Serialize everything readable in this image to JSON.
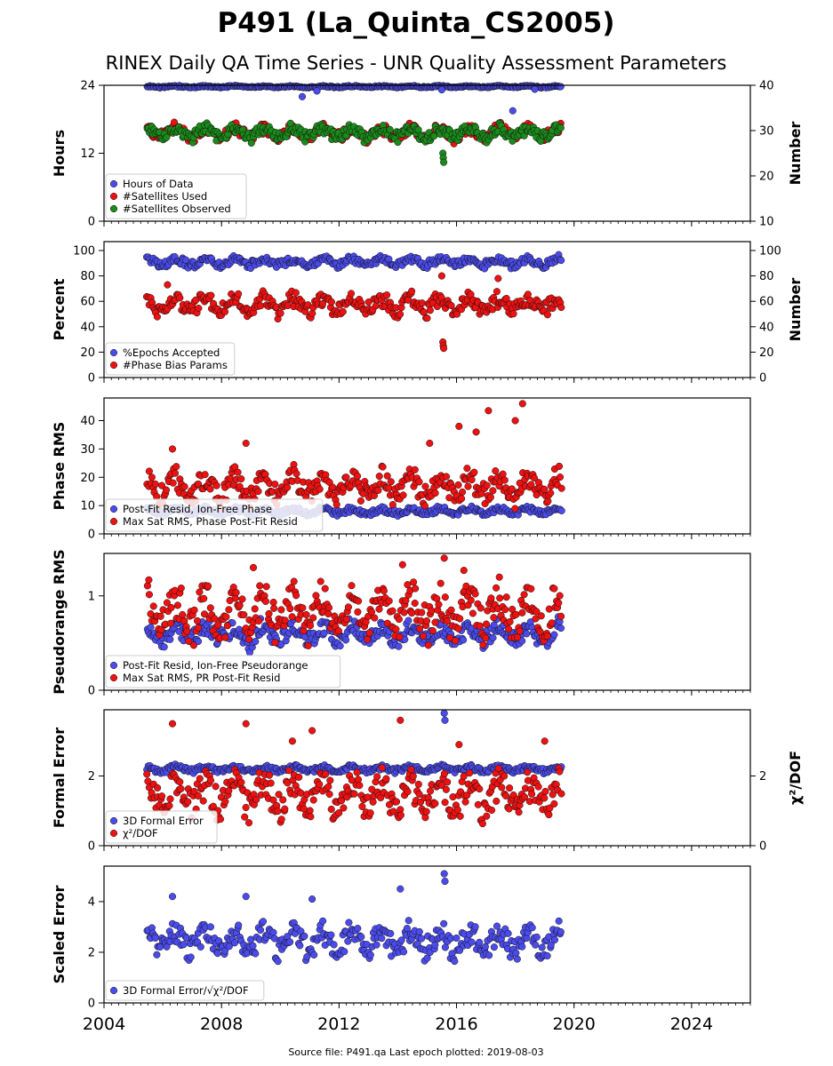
{
  "title": "P491 (La_Quinta_CS2005)",
  "subtitle": "RINEX Daily QA Time Series - UNR Quality Assessment Parameters",
  "source_note": "Source file: P491.qa Last epoch plotted: 2019-08-03",
  "colors": {
    "blue": "#4b4bec",
    "red": "#ee1111",
    "green": "#1a8a1a",
    "edge": "#111111"
  },
  "x_axis": {
    "range": [
      "2004-01-01",
      "2026-01-01"
    ],
    "tick_labels": [
      "2004",
      "2008",
      "2012",
      "2016",
      "2020",
      "2024"
    ],
    "tick_years": [
      2004,
      2008,
      2012,
      2016,
      2020,
      2024
    ],
    "data_start": "2005-06-15",
    "data_end": "2019-08-03"
  },
  "chart_data": [
    {
      "type": "scatter",
      "ylabel": "Hours",
      "ylim": [
        0,
        24
      ],
      "yticks": [
        "0",
        "12",
        "24"
      ],
      "y2label": "Number",
      "y2lim": [
        10,
        40
      ],
      "y2ticks": [
        "10",
        "20",
        "30",
        "40"
      ],
      "legend": "lower-left",
      "series": [
        {
          "name": "Hours of Data",
          "color": "#4b4bec",
          "axis": "left",
          "typical": 24,
          "range": [
            23.5,
            24
          ],
          "outliers": [
            {
              "x": "2010-10-01",
              "y": 22
            },
            {
              "x": "2011-04-01",
              "y": 23
            },
            {
              "x": "2015-07-01",
              "y": 23.2
            },
            {
              "x": "2017-12-01",
              "y": 19.5
            },
            {
              "x": "2018-09-01",
              "y": 23.3
            }
          ]
        },
        {
          "name": "#Satellites Used",
          "color": "#ee1111",
          "axis": "right",
          "typical": 29,
          "range": [
            27,
            32
          ],
          "outliers": [
            {
              "x": "2009-05-01",
              "y": 30
            }
          ]
        },
        {
          "name": "#Satellites Observed",
          "color": "#1a8a1a",
          "axis": "right",
          "typical": 30,
          "range": [
            27,
            32
          ],
          "outliers": [
            {
              "x": "2015-07-15",
              "y": 25
            },
            {
              "x": "2015-07-20",
              "y": 24
            },
            {
              "x": "2015-07-25",
              "y": 23
            }
          ]
        }
      ]
    },
    {
      "type": "scatter",
      "ylabel": "Percent",
      "ylim": [
        0,
        107
      ],
      "yticks": [
        "0",
        "20",
        "40",
        "60",
        "80",
        "100"
      ],
      "y2label": "Number",
      "y2lim": [
        0,
        107
      ],
      "y2ticks": [
        "0",
        "20",
        "40",
        "60",
        "80",
        "100"
      ],
      "legend": "lower-left",
      "series": [
        {
          "name": "%Epochs Accepted",
          "color": "#4b4bec",
          "axis": "left",
          "typical": 92,
          "range": [
            85,
            97
          ],
          "outliers": []
        },
        {
          "name": "#Phase Bias Params",
          "color": "#ee1111",
          "axis": "right",
          "typical": 56,
          "range": [
            45,
            70
          ],
          "outliers": [
            {
              "x": "2015-07-15",
              "y": 28
            },
            {
              "x": "2015-07-20",
              "y": 25
            },
            {
              "x": "2015-07-25",
              "y": 23
            },
            {
              "x": "2015-07-01",
              "y": 80
            },
            {
              "x": "2017-06-01",
              "y": 78
            },
            {
              "x": "2006-03-01",
              "y": 73
            }
          ]
        }
      ]
    },
    {
      "type": "scatter",
      "ylabel": "Phase RMS",
      "ylim": [
        0,
        48
      ],
      "yticks": [
        "0",
        "10",
        "20",
        "30",
        "40"
      ],
      "legend": "lower-left",
      "series": [
        {
          "name": "Post-Fit Resid, Ion-Free Phase",
          "color": "#4b4bec",
          "axis": "left",
          "typical": 8,
          "range": [
            6,
            10
          ],
          "outliers": []
        },
        {
          "name": "Max Sat RMS, Phase Post-Fit Resid",
          "color": "#ee1111",
          "axis": "left",
          "typical": 14,
          "range": [
            8,
            25
          ],
          "outliers": [
            {
              "x": "2016-02-01",
              "y": 38
            },
            {
              "x": "2017-02-01",
              "y": 43.5
            },
            {
              "x": "2018-04-01",
              "y": 46
            },
            {
              "x": "2018-01-01",
              "y": 40
            },
            {
              "x": "2015-02-01",
              "y": 32
            },
            {
              "x": "2016-09-01",
              "y": 36
            },
            {
              "x": "2008-11-01",
              "y": 32
            },
            {
              "x": "2006-05-01",
              "y": 30
            }
          ]
        }
      ]
    },
    {
      "type": "scatter",
      "ylabel": "Pseudorange RMS",
      "ylim": [
        0,
        1.45
      ],
      "yticks": [
        "0",
        "1"
      ],
      "legend": "lower-left",
      "series": [
        {
          "name": "Post-Fit Resid, Ion-Free Pseudorange",
          "color": "#4b4bec",
          "axis": "left",
          "typical": 0.6,
          "range": [
            0.4,
            0.8
          ],
          "outliers": []
        },
        {
          "name": "Max Sat RMS, PR Post-Fit Resid",
          "color": "#ee1111",
          "axis": "left",
          "typical": 0.85,
          "range": [
            0.4,
            1.25
          ],
          "outliers": [
            {
              "x": "2015-08-01",
              "y": 1.4
            },
            {
              "x": "2014-03-01",
              "y": 1.33
            },
            {
              "x": "2009-02-01",
              "y": 1.3
            },
            {
              "x": "2016-04-01",
              "y": 1.27
            }
          ]
        }
      ]
    },
    {
      "type": "scatter",
      "ylabel": "Formal Error",
      "ylim": [
        0,
        3.9
      ],
      "yticks": [
        "0",
        "2"
      ],
      "y2label": "χ²/DOF",
      "y2lim": [
        0,
        3.9
      ],
      "y2ticks": [
        "0",
        "2"
      ],
      "legend": "lower-left",
      "series": [
        {
          "name": "3D Formal Error",
          "color": "#4b4bec",
          "axis": "left",
          "typical": 2.2,
          "range": [
            2.05,
            2.35
          ],
          "outliers": [
            {
              "x": "2015-08-01",
              "y": 3.8
            },
            {
              "x": "2015-08-10",
              "y": 3.6
            }
          ]
        },
        {
          "name": "χ²/DOF",
          "color": "#ee1111",
          "axis": "right",
          "typical": 1.1,
          "range": [
            0.5,
            2.4
          ],
          "outliers": [
            {
              "x": "2006-05-01",
              "y": 3.5
            },
            {
              "x": "2008-11-01",
              "y": 3.5
            },
            {
              "x": "2014-02-01",
              "y": 3.6
            },
            {
              "x": "2011-02-01",
              "y": 3.3
            },
            {
              "x": "2010-06-01",
              "y": 3.0
            },
            {
              "x": "2016-02-01",
              "y": 2.9
            },
            {
              "x": "2019-01-01",
              "y": 3.0
            }
          ]
        }
      ]
    },
    {
      "type": "scatter",
      "ylabel": "Scaled Error",
      "ylim": [
        0,
        5.4
      ],
      "yticks": [
        "0",
        "2",
        "4"
      ],
      "legend": "lower-left",
      "series": [
        {
          "name": "3D Formal Error/√χ²/DOF",
          "color": "#4b4bec",
          "axis": "left",
          "typical": 2.3,
          "range": [
            1.5,
            3.4
          ],
          "outliers": [
            {
              "x": "2015-08-01",
              "y": 5.1
            },
            {
              "x": "2015-08-10",
              "y": 4.8
            },
            {
              "x": "2014-02-01",
              "y": 4.5
            },
            {
              "x": "2006-05-01",
              "y": 4.2
            },
            {
              "x": "2008-11-01",
              "y": 4.2
            },
            {
              "x": "2011-02-01",
              "y": 4.1
            }
          ]
        }
      ]
    }
  ]
}
